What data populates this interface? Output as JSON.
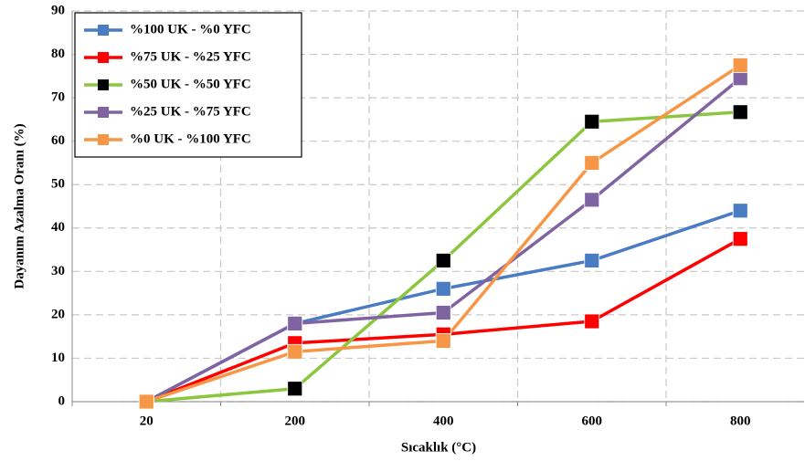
{
  "chart_data": {
    "type": "line",
    "x_label": "Sıcaklık (°C)",
    "y_label": "Dayanım Azalma Oranı (%)",
    "categories": [
      "20",
      "200",
      "400",
      "600",
      "800"
    ],
    "series": [
      {
        "name": "%100 UK - %0 YFC",
        "color": "#4a7cc4",
        "values": [
          0,
          18,
          26,
          32.5,
          44
        ]
      },
      {
        "name": "%75 UK - %25 YFC",
        "color": "#ff0000",
        "values": [
          0,
          13.5,
          15.5,
          18.5,
          37.5
        ]
      },
      {
        "name": "%50 UK - %50 YFC",
        "color": "#8cc63f",
        "marker_color": "#000000",
        "values": [
          0,
          3,
          32.5,
          64.5,
          66.7
        ]
      },
      {
        "name": "%25 UK - %75 YFC",
        "color": "#8064a2",
        "values": [
          0,
          18,
          20.5,
          46.5,
          74.5
        ]
      },
      {
        "name": "%0 UK - %100 YFC",
        "color": "#f79646",
        "values": [
          0,
          11.5,
          14,
          55,
          77.5
        ]
      }
    ],
    "ylim": [
      0,
      90
    ],
    "yticks": [
      0,
      10,
      20,
      30,
      40,
      50,
      60,
      70,
      80,
      90
    ],
    "grid": true,
    "legend": "upper-left"
  }
}
